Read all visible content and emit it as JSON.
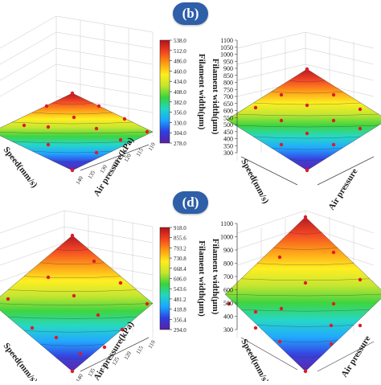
{
  "figure": {
    "panel_labels": [
      "(b)",
      "(d)"
    ],
    "colors": {
      "badge": "#2e5fa8",
      "colormap": [
        "#5b1fa6",
        "#2f3ee0",
        "#1aa6ff",
        "#20d6c4",
        "#39d33a",
        "#c4e52a",
        "#ffee1a",
        "#ff9a12",
        "#f2421e",
        "#b3101a"
      ],
      "marker": "#e01b24"
    }
  },
  "chart_data": [
    {
      "panel": "upper-left (cropped)",
      "type": "surface",
      "xlabel": "Air pressure(kPa)",
      "ylabel": "Speed(mm/s)",
      "x_ticks": [
        "110",
        "115",
        "120",
        "125",
        "130",
        "135",
        "140"
      ],
      "colorbar": {
        "label": "Filament width(μm)",
        "ticks": [
          "538.0",
          "512.0",
          "486.0",
          "460.0",
          "434.0",
          "408.0",
          "382.0",
          "356.0",
          "330.0",
          "304.0",
          "278.0"
        ],
        "range": [
          278,
          538
        ]
      },
      "grid": true
    },
    {
      "panel": "(b)",
      "type": "surface",
      "zlabel": "Filament width(μm)",
      "ylabel": "Speed(mm/s)",
      "xlabel": "Air pressure",
      "z_ticks": [
        "300",
        "350",
        "400",
        "450",
        "500",
        "550",
        "600",
        "650",
        "700",
        "750",
        "800",
        "850",
        "900",
        "950",
        "1000",
        "1050",
        "1100"
      ],
      "zlim": [
        300,
        1100
      ],
      "grid": true
    },
    {
      "panel": "lower-left (cropped)",
      "type": "surface",
      "xlabel": "Air pressure(kPa)",
      "ylabel": "Speed(mm/s)",
      "x_ticks": [
        "110",
        "115",
        "120",
        "125",
        "130",
        "135",
        "140"
      ],
      "colorbar": {
        "label": "Filament width(μm)",
        "ticks": [
          "918.0",
          "855.6",
          "793.2",
          "730.8",
          "668.4",
          "606.0",
          "543.6",
          "481.2",
          "418.8",
          "356.4",
          "294.0"
        ],
        "range": [
          294,
          918
        ]
      },
      "grid": true
    },
    {
      "panel": "(d)",
      "type": "surface",
      "zlabel": "Filament width(μm)",
      "ylabel": "Speed(mm/s)",
      "xlabel": "Air pressure",
      "z_ticks": [
        "300",
        "400",
        "500",
        "600",
        "700",
        "800",
        "900",
        "1000",
        "1100"
      ],
      "zlim": [
        300,
        1100
      ],
      "grid": true
    }
  ]
}
